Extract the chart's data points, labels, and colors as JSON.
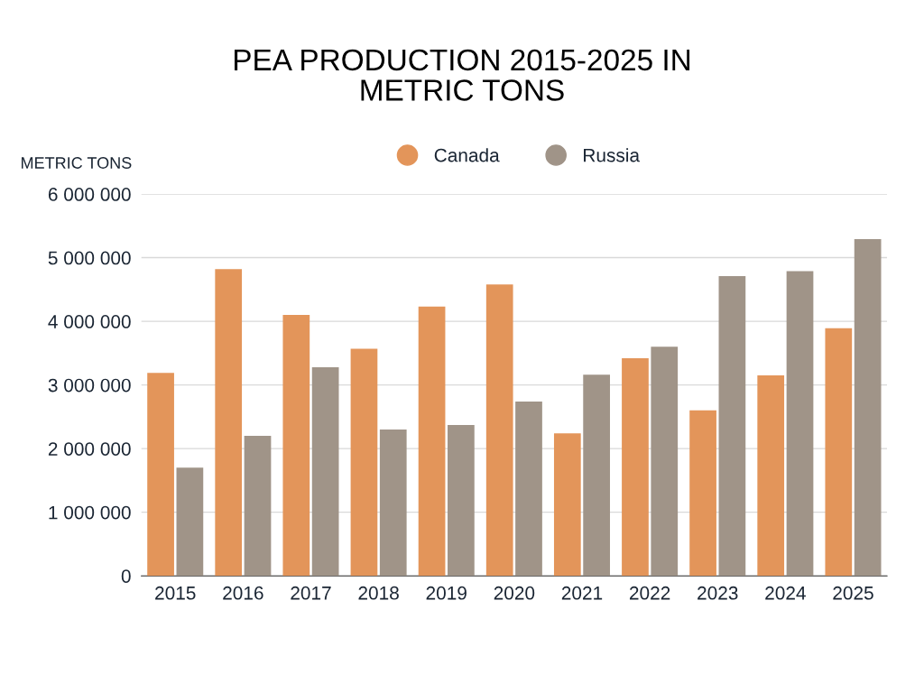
{
  "chart_data": {
    "type": "bar",
    "title": "PEA PRODUCTION 2015-2025 IN\nMETRIC TONS",
    "ylabel": "METRIC TONS",
    "categories": [
      "2015",
      "2016",
      "2017",
      "2018",
      "2019",
      "2020",
      "2021",
      "2022",
      "2023",
      "2024",
      "2025"
    ],
    "series": [
      {
        "name": "Canada",
        "color": "#e3955a",
        "values": [
          3190000,
          4820000,
          4100000,
          3570000,
          4230000,
          4580000,
          2240000,
          3420000,
          2600000,
          3150000,
          3890000
        ]
      },
      {
        "name": "Russia",
        "color": "#a09488",
        "values": [
          1700000,
          2200000,
          3280000,
          2300000,
          2370000,
          2740000,
          3160000,
          3600000,
          4710000,
          4790000,
          5290000
        ]
      }
    ],
    "ylim": [
      0,
      6000000
    ],
    "yticks": [
      0,
      {
        "value": 1000000,
        "label": "1 000 000"
      },
      {
        "value": 2000000,
        "label": "2 000 000"
      },
      {
        "value": 3000000,
        "label": "3 000 000"
      },
      {
        "value": 4000000,
        "label": "4 000 000"
      },
      {
        "value": 5000000,
        "label": "5 000 000"
      },
      {
        "value": 6000000,
        "label": "6 000 000"
      }
    ],
    "grid": "y",
    "legend": "top"
  }
}
